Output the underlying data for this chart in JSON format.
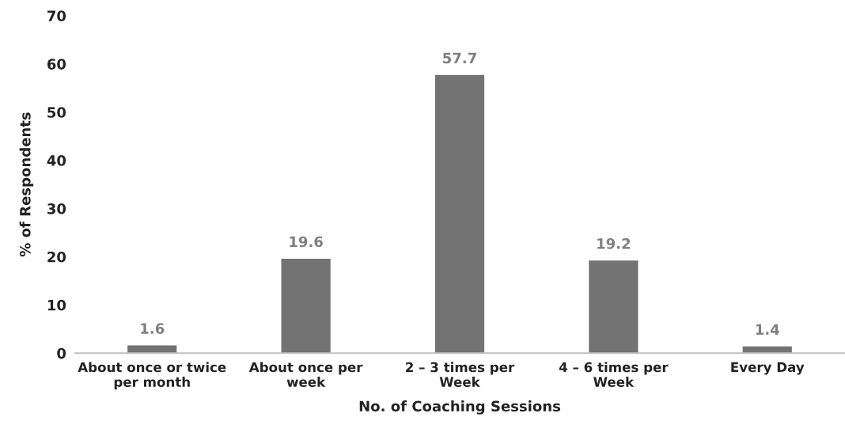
{
  "chart_data": {
    "type": "bar",
    "xlabel": "No. of Coaching Sessions",
    "ylabel": "% of Respondents",
    "categories": [
      "About once or twice\nper month",
      "About once per\nweek",
      "2 – 3 times per\nWeek",
      "4 – 6 times per\nWeek",
      "Every Day"
    ],
    "values": [
      1.6,
      19.6,
      57.7,
      19.2,
      1.4
    ],
    "color": "#737373",
    "ylim": [
      0,
      70
    ],
    "yticks": [
      0,
      10,
      20,
      30,
      40,
      50,
      60,
      70
    ],
    "grid": false,
    "data_labels": true
  }
}
